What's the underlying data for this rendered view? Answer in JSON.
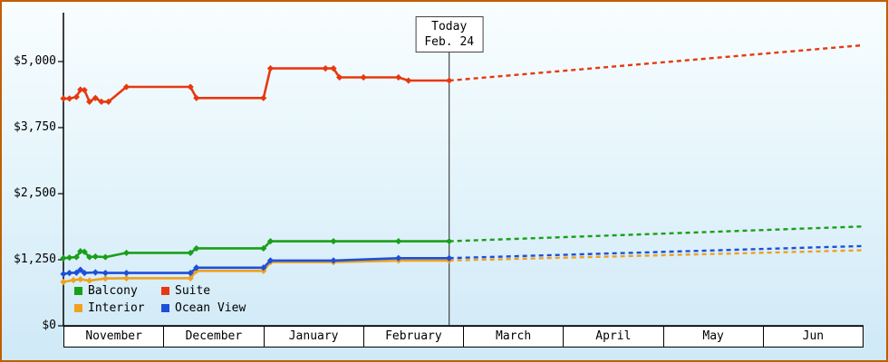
{
  "colors": {
    "frame_border": "#c05f00",
    "axis": "#000000",
    "today_line": "#222222",
    "label_box_bg": "#ffffff"
  },
  "chart_data": {
    "type": "line",
    "title": "",
    "y_axis": {
      "tick_values": [
        0,
        1250,
        2500,
        3750,
        5000
      ],
      "tick_labels": [
        "$0",
        "$1,250",
        "$2,500",
        "$3,750",
        "$5,000"
      ],
      "ylim": [
        0,
        5925
      ]
    },
    "x_axis": {
      "months": [
        "November",
        "December",
        "January",
        "February",
        "March",
        "April",
        "May",
        "Jun"
      ]
    },
    "today_marker": {
      "line1": "Today",
      "line2": "Feb. 24",
      "month_index": 3,
      "day": 24,
      "days_in_month": 28
    },
    "series": [
      {
        "name": "Balcony",
        "color": "#18a018",
        "history": [
          [
            0,
            1280
          ],
          [
            0.06,
            1290
          ],
          [
            0.13,
            1300
          ],
          [
            0.17,
            1410
          ],
          [
            0.21,
            1400
          ],
          [
            0.26,
            1300
          ],
          [
            0.32,
            1310
          ],
          [
            0.42,
            1300
          ],
          [
            0.63,
            1380
          ],
          [
            1.27,
            1380
          ],
          [
            1.33,
            1465
          ],
          [
            2.0,
            1465
          ],
          [
            2.07,
            1600
          ],
          [
            2.7,
            1600
          ],
          [
            3.35,
            1600
          ],
          [
            3.857,
            1600
          ]
        ],
        "forecast_end_value": 1880
      },
      {
        "name": "Suite",
        "color": "#e8380f",
        "history": [
          [
            0,
            4300
          ],
          [
            0.06,
            4300
          ],
          [
            0.13,
            4330
          ],
          [
            0.17,
            4470
          ],
          [
            0.21,
            4460
          ],
          [
            0.26,
            4240
          ],
          [
            0.32,
            4310
          ],
          [
            0.38,
            4240
          ],
          [
            0.45,
            4240
          ],
          [
            0.63,
            4520
          ],
          [
            1.27,
            4520
          ],
          [
            1.33,
            4310
          ],
          [
            2.0,
            4310
          ],
          [
            2.07,
            4870
          ],
          [
            2.62,
            4870
          ],
          [
            2.7,
            4870
          ],
          [
            2.76,
            4700
          ],
          [
            3.0,
            4700
          ],
          [
            3.35,
            4700
          ],
          [
            3.45,
            4640
          ],
          [
            3.857,
            4640
          ]
        ],
        "forecast_end_value": 5310
      },
      {
        "name": "Interior",
        "color": "#efa11f",
        "history": [
          [
            0,
            830
          ],
          [
            0.1,
            865
          ],
          [
            0.17,
            880
          ],
          [
            0.26,
            855
          ],
          [
            0.42,
            895
          ],
          [
            0.63,
            900
          ],
          [
            1.27,
            900
          ],
          [
            1.33,
            1040
          ],
          [
            2.0,
            1040
          ],
          [
            2.07,
            1205
          ],
          [
            2.7,
            1205
          ],
          [
            3.35,
            1235
          ],
          [
            3.857,
            1235
          ]
        ],
        "forecast_end_value": 1430
      },
      {
        "name": "Ocean View",
        "color": "#1e4fd8",
        "history": [
          [
            0,
            980
          ],
          [
            0.06,
            1000
          ],
          [
            0.13,
            1005
          ],
          [
            0.17,
            1060
          ],
          [
            0.21,
            1000
          ],
          [
            0.32,
            1010
          ],
          [
            0.42,
            1000
          ],
          [
            0.63,
            1000
          ],
          [
            1.27,
            1000
          ],
          [
            1.33,
            1100
          ],
          [
            2.0,
            1100
          ],
          [
            2.07,
            1235
          ],
          [
            2.7,
            1235
          ],
          [
            3.35,
            1280
          ],
          [
            3.857,
            1280
          ]
        ],
        "forecast_end_value": 1510
      }
    ],
    "legend_order": [
      "Balcony",
      "Suite",
      "Interior",
      "Ocean View"
    ]
  }
}
